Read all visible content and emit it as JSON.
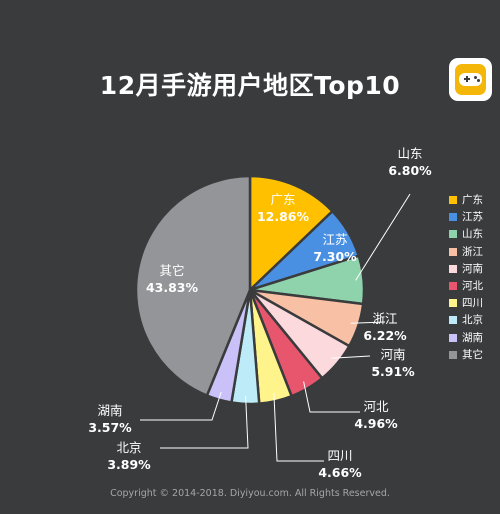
{
  "header": {
    "title": "12月手游用户地区Top10"
  },
  "logo": {
    "icon": "gamepad-icon",
    "accent": "#f5b60a"
  },
  "chart_data": {
    "type": "pie",
    "title": "12月手游用户地区Top10",
    "slices": [
      {
        "label": "广东",
        "value": 12.86,
        "display": "12.86%",
        "color": "#ffc000",
        "label_inside": true
      },
      {
        "label": "江苏",
        "value": 7.3,
        "display": "7.30%",
        "color": "#4a90e2",
        "label_inside": true
      },
      {
        "label": "山东",
        "value": 6.8,
        "display": "6.80%",
        "color": "#8fd3ad",
        "label_inside": false
      },
      {
        "label": "浙江",
        "value": 6.22,
        "display": "6.22%",
        "color": "#f8c0a5",
        "label_inside": false
      },
      {
        "label": "河南",
        "value": 5.91,
        "display": "5.91%",
        "color": "#fcd9dd",
        "label_inside": false
      },
      {
        "label": "河北",
        "value": 4.96,
        "display": "4.96%",
        "color": "#e8566d",
        "label_inside": false
      },
      {
        "label": "四川",
        "value": 4.66,
        "display": "4.66%",
        "color": "#fff48c",
        "label_inside": false
      },
      {
        "label": "北京",
        "value": 3.89,
        "display": "3.89%",
        "color": "#bdecf8",
        "label_inside": false
      },
      {
        "label": "湖南",
        "value": 3.57,
        "display": "3.57%",
        "color": "#c9c1f7",
        "label_inside": false
      },
      {
        "label": "其它",
        "value": 43.83,
        "display": "43.83%",
        "color": "#939599",
        "label_inside": true
      }
    ],
    "legend": [
      "广东",
      "江苏",
      "山东",
      "浙江",
      "河南",
      "河北",
      "四川",
      "北京",
      "湖南",
      "其它"
    ],
    "legend_position": "right"
  },
  "footer": {
    "copyright": "Copyright © 2014-2018. Diyiyou.com. All Rights Reserved."
  }
}
